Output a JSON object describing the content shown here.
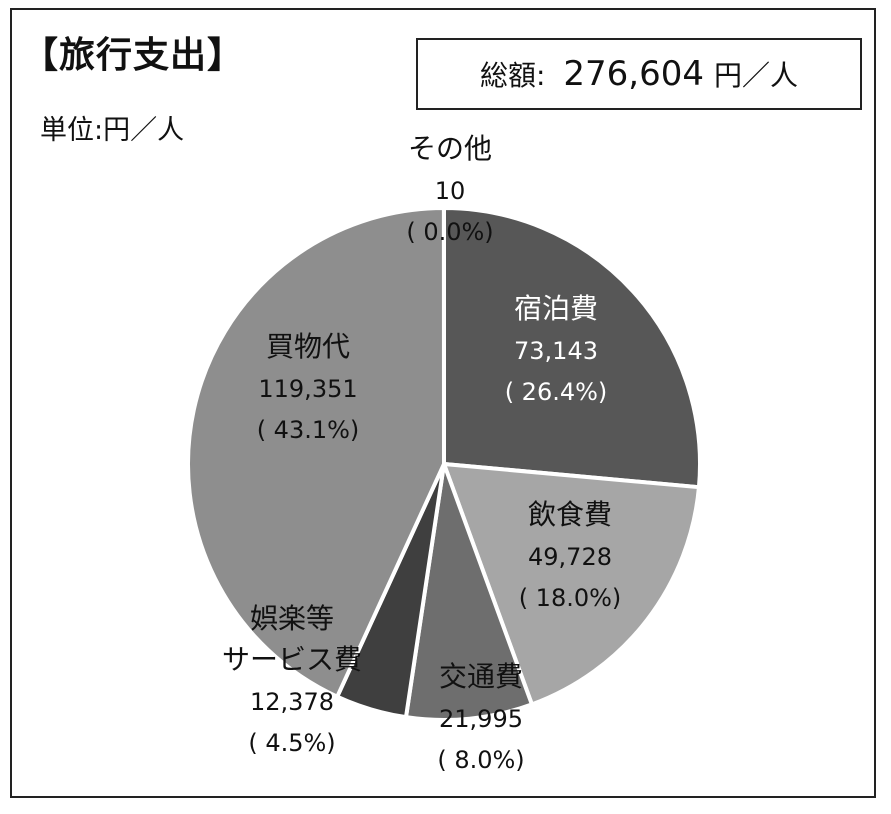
{
  "chart_data": {
    "type": "pie",
    "title": "【旅行支出】",
    "unit_label": "単位:円／人",
    "total": {
      "label": "総額:",
      "value": "276,604",
      "unit": "円／人"
    },
    "slices": [
      {
        "label": "宿泊費",
        "value": 73143,
        "value_label": "73,143",
        "pct_label": "( 26.4%)",
        "color": "#575757",
        "text_color": "#ffffff"
      },
      {
        "label": "飲食費",
        "value": 49728,
        "value_label": "49,728",
        "pct_label": "( 18.0%)",
        "color": "#a6a6a6",
        "text_color": "#111111"
      },
      {
        "label": "交通費",
        "value": 21995,
        "value_label": "21,995",
        "pct_label": "( 8.0%)",
        "color": "#6e6e6e",
        "text_color": "#111111"
      },
      {
        "label": [
          "娯楽等",
          "サービス費"
        ],
        "value": 12378,
        "value_label": "12,378",
        "pct_label": "( 4.5%)",
        "color": "#3f3f3f",
        "text_color": "#111111"
      },
      {
        "label": "買物代",
        "value": 119351,
        "value_label": "119,351",
        "pct_label": "( 43.1%)",
        "color": "#8e8e8e",
        "text_color": "#111111"
      },
      {
        "label": "その他",
        "value": 10,
        "value_label": "10",
        "pct_label": "( 0.0%)",
        "color": "#cccccc",
        "text_color": "#111111"
      }
    ]
  }
}
